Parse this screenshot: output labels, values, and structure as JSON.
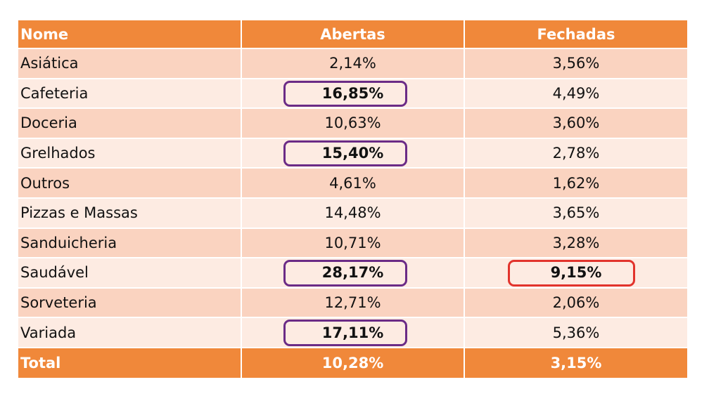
{
  "headers": {
    "name": "Nome",
    "open": "Abertas",
    "closed": "Fechadas"
  },
  "rows": [
    {
      "name": "Asiática",
      "open": "2,14%",
      "closed": "3,56%",
      "open_highlight": false,
      "closed_highlight": false
    },
    {
      "name": "Cafeteria",
      "open": "16,85%",
      "closed": "4,49%",
      "open_highlight": true,
      "closed_highlight": false
    },
    {
      "name": "Doceria",
      "open": "10,63%",
      "closed": "3,60%",
      "open_highlight": false,
      "closed_highlight": false
    },
    {
      "name": "Grelhados",
      "open": "15,40%",
      "closed": "2,78%",
      "open_highlight": true,
      "closed_highlight": false
    },
    {
      "name": "Outros",
      "open": "4,61%",
      "closed": "1,62%",
      "open_highlight": false,
      "closed_highlight": false
    },
    {
      "name": "Pizzas e Massas",
      "open": "14,48%",
      "closed": "3,65%",
      "open_highlight": false,
      "closed_highlight": false
    },
    {
      "name": "Sanduicheria",
      "open": "10,71%",
      "closed": "3,28%",
      "open_highlight": false,
      "closed_highlight": false
    },
    {
      "name": "Saudável",
      "open": "28,17%",
      "closed": "9,15%",
      "open_highlight": true,
      "closed_highlight": true
    },
    {
      "name": "Sorveteria",
      "open": "12,71%",
      "closed": "2,06%",
      "open_highlight": false,
      "closed_highlight": false
    },
    {
      "name": "Variada",
      "open": "17,11%",
      "closed": "5,36%",
      "open_highlight": true,
      "closed_highlight": false
    }
  ],
  "total": {
    "name": "Total",
    "open": "10,28%",
    "closed": "3,15%"
  },
  "colors": {
    "header_bg": "#f0883a",
    "row_dark": "#fad3c0",
    "row_light": "#fdebe2",
    "highlight_open": "#6b2b86",
    "highlight_closed": "#e2332c"
  }
}
